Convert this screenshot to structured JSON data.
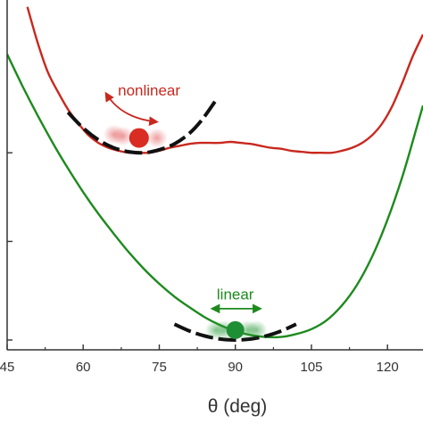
{
  "chart_data": {
    "type": "line",
    "xlabel": "θ (deg)",
    "ylabel": "",
    "xlim": [
      45,
      127
    ],
    "ylim": [
      0,
      3.55
    ],
    "grid": false,
    "x_tick_labels": [
      "45",
      "60",
      "75",
      "90",
      "105",
      "120"
    ],
    "x_ticks": [
      45,
      60,
      75,
      90,
      105,
      120
    ],
    "y_ticks": [
      0.1,
      1.1,
      2.0
    ],
    "colors": {
      "nonlinear": "#c8281e",
      "linear": "#1e8a1e",
      "approx": "#111111",
      "axis": "#333333"
    },
    "series": [
      {
        "name": "nonlinear",
        "color": "#c8281e",
        "x": [
          49,
          51,
          53,
          55,
          57,
          59,
          61,
          63,
          65,
          67,
          69,
          71,
          73,
          75,
          77,
          79,
          81,
          83,
          85,
          87,
          89,
          91,
          93,
          95,
          97,
          99,
          101,
          103,
          105,
          107,
          109,
          111,
          113,
          115,
          117,
          119,
          121,
          123,
          125,
          127
        ],
        "y": [
          3.48,
          3.12,
          2.82,
          2.62,
          2.44,
          2.3,
          2.18,
          2.1,
          2.05,
          2.02,
          2.0,
          2.0,
          2.0,
          2.02,
          2.05,
          2.07,
          2.09,
          2.1,
          2.1,
          2.1,
          2.11,
          2.1,
          2.09,
          2.07,
          2.05,
          2.04,
          2.02,
          2.01,
          2.0,
          2.0,
          2.0,
          2.02,
          2.05,
          2.1,
          2.18,
          2.3,
          2.48,
          2.72,
          2.98,
          3.2
        ]
      },
      {
        "name": "linear",
        "color": "#1e8a1e",
        "x": [
          45,
          48,
          51,
          54,
          57,
          60,
          63,
          66,
          69,
          72,
          75,
          78,
          81,
          84,
          87,
          90,
          93,
          96,
          99,
          102,
          105,
          108,
          111,
          114,
          117,
          120,
          123,
          126,
          127
        ],
        "y": [
          3.0,
          2.68,
          2.38,
          2.1,
          1.84,
          1.6,
          1.38,
          1.18,
          0.99,
          0.82,
          0.67,
          0.54,
          0.43,
          0.33,
          0.25,
          0.19,
          0.15,
          0.13,
          0.13,
          0.16,
          0.21,
          0.3,
          0.45,
          0.66,
          0.95,
          1.32,
          1.77,
          2.3,
          2.48
        ]
      }
    ],
    "approximations": [
      {
        "curve": "nonlinear",
        "x": [
          57,
          60,
          63,
          66,
          69,
          72,
          75,
          78,
          81,
          83.5,
          86
        ],
        "y": [
          2.41,
          2.25,
          2.13,
          2.05,
          2.01,
          2.0,
          2.03,
          2.09,
          2.2,
          2.34,
          2.52
        ]
      },
      {
        "curve": "linear",
        "x": [
          78,
          81,
          84,
          87,
          90,
          93,
          96,
          99,
          102
        ],
        "y": [
          0.26,
          0.19,
          0.14,
          0.11,
          0.1,
          0.11,
          0.14,
          0.19,
          0.26
        ]
      }
    ],
    "annotations": [
      {
        "text": "nonlinear",
        "color": "#c8281e",
        "x": 73,
        "y": 2.58,
        "ball_x": 71,
        "ball_y": 2.15
      },
      {
        "text": "linear",
        "color": "#1e8a1e",
        "x": 90,
        "y": 0.51,
        "ball_x": 90,
        "ball_y": 0.2
      }
    ]
  }
}
